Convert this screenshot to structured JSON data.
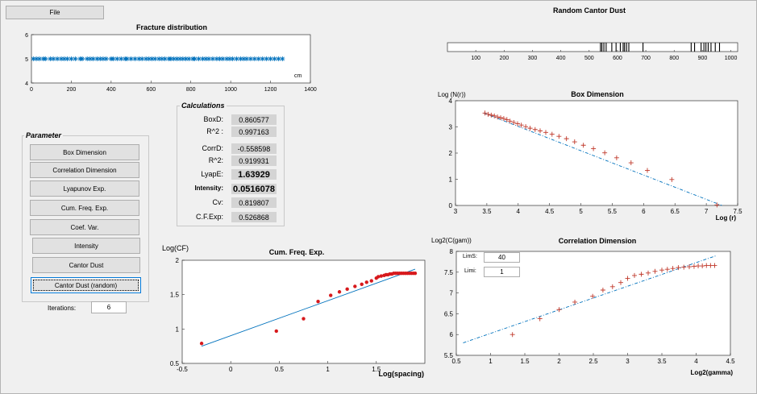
{
  "menu": {
    "file": "File"
  },
  "fracture": {
    "title": "Fracture distribution",
    "xunit": "cm",
    "x_ticks": [
      "0",
      "200",
      "400",
      "600",
      "800",
      "1000",
      "1200",
      "1400"
    ],
    "y_ticks": [
      "4",
      "5",
      "6"
    ],
    "xlim": [
      0,
      1400
    ],
    "ylim": [
      4,
      6
    ],
    "positions": [
      10,
      25,
      40,
      60,
      70,
      95,
      110,
      130,
      150,
      165,
      180,
      200,
      220,
      245,
      255,
      280,
      295,
      310,
      330,
      345,
      360,
      375,
      400,
      410,
      430,
      450,
      470,
      480,
      500,
      520,
      540,
      555,
      575,
      590,
      605,
      620,
      640,
      655,
      670,
      690,
      700,
      715,
      730,
      745,
      760,
      775,
      790,
      810,
      820,
      840,
      860,
      875,
      890,
      910,
      930,
      945,
      960,
      980,
      995,
      1010,
      1030,
      1050,
      1065,
      1080,
      1100,
      1120,
      1140,
      1160,
      1180,
      1200,
      1220,
      1240,
      1260
    ],
    "y_value": 5,
    "color": "#0072bd"
  },
  "cantor": {
    "title": "Random Cantor Dust",
    "x_ticks": [
      "100",
      "200",
      "300",
      "400",
      "500",
      "600",
      "700",
      "800",
      "900",
      "1000"
    ],
    "xlim": [
      0,
      1024
    ],
    "lines": [
      540,
      545,
      552,
      560,
      580,
      595,
      610,
      620,
      625,
      632,
      640,
      690,
      860,
      872,
      895,
      905,
      912,
      920,
      930,
      945,
      960
    ]
  },
  "calculations": {
    "title": "Calculations",
    "rows": [
      {
        "label": "BoxD:",
        "value": "0.860577",
        "big": false
      },
      {
        "label": "R^2 :",
        "value": "0.997163",
        "big": false
      },
      {
        "label": "CorrD:",
        "value": "-0.558598",
        "big": false
      },
      {
        "label": "R^2:",
        "value": "0.919931",
        "big": false
      },
      {
        "label": "LyapE:",
        "value": "1.63929",
        "big": true
      },
      {
        "label": "Intensity:",
        "value": "0.0516078",
        "big": true
      },
      {
        "label": "Cv:",
        "value": "0.819807",
        "big": false
      },
      {
        "label": "C.F.Exp:",
        "value": "0.526868",
        "big": false
      }
    ]
  },
  "parameter": {
    "title": "Parameter",
    "buttons": [
      "Box Dimension",
      "Correlation Dimension",
      "Lyapunov Exp.",
      "Cum. Freq. Exp.",
      "Coef. Var.",
      "Intensity",
      "Cantor Dust",
      "Cantor Dust (random)"
    ],
    "iterations_label": "Iterations:",
    "iterations_value": "6"
  },
  "cumfreq": {
    "title": "Cum. Freq. Exp.",
    "ylabel": "Log(CF)",
    "xlabel": "Log(spacing)",
    "x_ticks": [
      "-0.5",
      "0",
      "0.5",
      "1",
      "1.5"
    ],
    "y_ticks": [
      "0.5",
      "1",
      "1.5",
      "2"
    ],
    "xlim": [
      -0.5,
      2.0
    ],
    "ylim": [
      0.5,
      2.0
    ],
    "points_x": [
      -0.3,
      0.47,
      0.75,
      0.9,
      1.03,
      1.12,
      1.2,
      1.28,
      1.35,
      1.4,
      1.45,
      1.5,
      1.52,
      1.55,
      1.58,
      1.6,
      1.62,
      1.64,
      1.66,
      1.68,
      1.7,
      1.72,
      1.74,
      1.76,
      1.78,
      1.8,
      1.82,
      1.84,
      1.86,
      1.88,
      1.9
    ],
    "points_y": [
      0.79,
      0.97,
      1.15,
      1.4,
      1.49,
      1.54,
      1.58,
      1.62,
      1.65,
      1.68,
      1.7,
      1.74,
      1.76,
      1.77,
      1.78,
      1.79,
      1.79,
      1.8,
      1.8,
      1.81,
      1.81,
      1.81,
      1.81,
      1.81,
      1.81,
      1.81,
      1.81,
      1.81,
      1.81,
      1.81,
      1.81
    ],
    "fit": [
      [
        -0.3,
        0.75
      ],
      [
        1.9,
        1.87
      ]
    ],
    "point_color": "#d7191c",
    "line_color": "#0072bd"
  },
  "boxdim": {
    "title": "Box Dimension",
    "ylabel": "Log (N(r))",
    "xlabel": "Log (r)",
    "x_ticks": [
      "3",
      "3.5",
      "4",
      "4.5",
      "5",
      "5.5",
      "6",
      "6.5",
      "7",
      "7.5"
    ],
    "y_ticks": [
      "0",
      "1",
      "2",
      "3",
      "4"
    ],
    "xlim": [
      3,
      7.5
    ],
    "ylim": [
      0,
      4
    ],
    "points_x": [
      3.47,
      3.52,
      3.57,
      3.62,
      3.67,
      3.72,
      3.77,
      3.82,
      3.87,
      3.93,
      3.99,
      4.05,
      4.12,
      4.19,
      4.27,
      4.35,
      4.44,
      4.54,
      4.65,
      4.77,
      4.9,
      5.04,
      5.2,
      5.38,
      5.57,
      5.8,
      6.06,
      6.45,
      7.17
    ],
    "points_y": [
      3.53,
      3.48,
      3.45,
      3.42,
      3.38,
      3.35,
      3.32,
      3.28,
      3.22,
      3.17,
      3.12,
      3.07,
      3.01,
      2.95,
      2.9,
      2.85,
      2.79,
      2.72,
      2.64,
      2.55,
      2.43,
      2.3,
      2.17,
      2.01,
      1.82,
      1.63,
      1.34,
      0.99,
      0.02
    ],
    "fit": [
      [
        3.45,
        3.53
      ],
      [
        7.25,
        0.0
      ]
    ],
    "point_color": "#c0392b",
    "line_color": "#0072bd"
  },
  "corrdim": {
    "title": "Correlation Dimension",
    "ylabel": "Log2(C(gam))",
    "xlabel": "Log2(gamma)",
    "x_ticks": [
      "0.5",
      "1",
      "1.5",
      "2",
      "2.5",
      "3",
      "3.5",
      "4",
      "4.5"
    ],
    "y_ticks": [
      "5.5",
      "6",
      "6.5",
      "7",
      "7.5",
      "8"
    ],
    "xlim": [
      0.5,
      4.5
    ],
    "ylim": [
      5.5,
      8.0
    ],
    "points_x": [
      1.32,
      1.72,
      2.0,
      2.23,
      2.49,
      2.64,
      2.78,
      2.9,
      3.0,
      3.1,
      3.2,
      3.3,
      3.4,
      3.5,
      3.58,
      3.66,
      3.74,
      3.82,
      3.9,
      3.97,
      4.03,
      4.09,
      4.15,
      4.21,
      4.27
    ],
    "points_y": [
      6.0,
      6.38,
      6.6,
      6.78,
      6.92,
      7.07,
      7.15,
      7.25,
      7.35,
      7.42,
      7.45,
      7.48,
      7.52,
      7.55,
      7.57,
      7.59,
      7.61,
      7.62,
      7.63,
      7.64,
      7.65,
      7.65,
      7.66,
      7.66,
      7.66
    ],
    "fit": [
      [
        0.6,
        5.8
      ],
      [
        4.3,
        7.9
      ]
    ],
    "lims_label": "LimS:",
    "lims_value": "40",
    "limi_label": "Limi:",
    "limi_value": "1",
    "point_color": "#c0392b",
    "line_color": "#0072bd"
  }
}
